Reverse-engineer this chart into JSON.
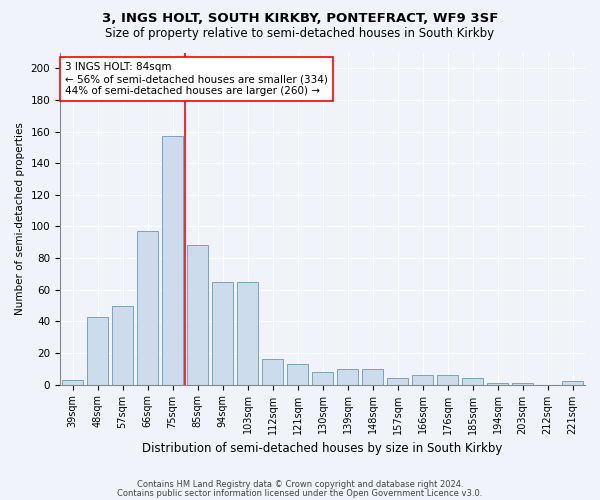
{
  "title1": "3, INGS HOLT, SOUTH KIRKBY, PONTEFRACT, WF9 3SF",
  "title2": "Size of property relative to semi-detached houses in South Kirkby",
  "xlabel": "Distribution of semi-detached houses by size in South Kirkby",
  "ylabel": "Number of semi-detached properties",
  "categories": [
    "39sqm",
    "48sqm",
    "57sqm",
    "66sqm",
    "75sqm",
    "85sqm",
    "94sqm",
    "103sqm",
    "112sqm",
    "121sqm",
    "130sqm",
    "139sqm",
    "148sqm",
    "157sqm",
    "166sqm",
    "176sqm",
    "185sqm",
    "194sqm",
    "203sqm",
    "212sqm",
    "221sqm"
  ],
  "values": [
    3,
    43,
    50,
    97,
    157,
    88,
    65,
    65,
    16,
    13,
    8,
    10,
    10,
    4,
    6,
    6,
    4,
    1,
    1,
    0,
    2
  ],
  "bar_color": "#ccdcec",
  "bar_edge_color": "#6699bb",
  "red_line_x": 4.5,
  "annotation_text": "3 INGS HOLT: 84sqm\n← 56% of semi-detached houses are smaller (334)\n44% of semi-detached houses are larger (260) →",
  "ylim": [
    0,
    210
  ],
  "yticks": [
    0,
    20,
    40,
    60,
    80,
    100,
    120,
    140,
    160,
    180,
    200
  ],
  "background_color": "#f0f4fa",
  "plot_bg_color": "#f0f4fa",
  "footer1": "Contains HM Land Registry data © Crown copyright and database right 2024.",
  "footer2": "Contains public sector information licensed under the Open Government Licence v3.0."
}
